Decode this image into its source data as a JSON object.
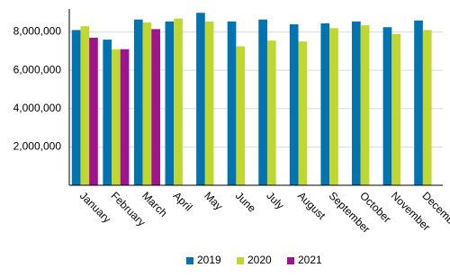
{
  "chart_data": {
    "type": "bar",
    "categories": [
      "January",
      "February",
      "March",
      "April",
      "May",
      "June",
      "July",
      "August",
      "September",
      "October",
      "November",
      "December"
    ],
    "series": [
      {
        "name": "2019",
        "color": "#0073b0",
        "values": [
          8100000,
          7600000,
          8650000,
          8550000,
          9000000,
          8550000,
          8650000,
          8400000,
          8450000,
          8550000,
          8250000,
          8600000
        ]
      },
      {
        "name": "2020",
        "color": "#bfd730",
        "values": [
          8300000,
          7100000,
          8500000,
          8700000,
          8550000,
          7250000,
          7550000,
          7500000,
          8200000,
          8350000,
          7900000,
          8100000
        ]
      },
      {
        "name": "2021",
        "color": "#a0138e",
        "values": [
          7700000,
          7100000,
          8150000,
          null,
          null,
          null,
          null,
          null,
          null,
          null,
          null,
          null
        ]
      }
    ],
    "ylim": [
      0,
      9200000
    ],
    "yticks": [
      {
        "value": 2000000,
        "label": "2,000,000"
      },
      {
        "value": 4000000,
        "label": "4,000,000"
      },
      {
        "value": 6000000,
        "label": "6,000,000"
      },
      {
        "value": 8000000,
        "label": "8,000,000"
      }
    ],
    "grid": true,
    "legend": "bottom"
  }
}
